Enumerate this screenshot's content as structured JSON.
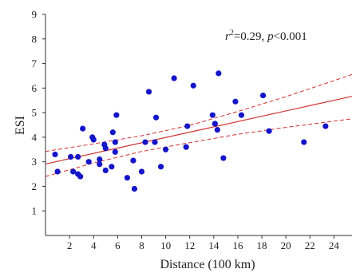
{
  "chart_data": {
    "type": "scatter",
    "xlabel": "Distance (100 km)",
    "ylabel": "ESI",
    "xlim": [
      0,
      25.5
    ],
    "ylim": [
      0,
      9
    ],
    "xticks": [
      2,
      4,
      6,
      8,
      10,
      12,
      14,
      16,
      18,
      20,
      22,
      24
    ],
    "yticks": [
      1,
      2,
      3,
      4,
      5,
      6,
      7,
      8,
      9
    ],
    "annotation": {
      "r_symbol": "r",
      "r_exp": "2",
      "r_value": "=0.29, ",
      "p_symbol": "p",
      "p_value": "<0.001"
    },
    "colors": {
      "points": "#1414c8",
      "fit": "#d03030",
      "axis": "#333333"
    },
    "regression": {
      "intercept": 2.91,
      "slope": 0.108
    },
    "confidence_band": {
      "x": [
        0,
        4,
        8,
        12,
        16,
        20,
        25.5
      ],
      "upper": [
        3.42,
        3.73,
        4.06,
        4.48,
        5.05,
        5.65,
        6.55
      ],
      "lower": [
        2.4,
        2.95,
        3.42,
        3.78,
        4.12,
        4.4,
        4.75
      ]
    },
    "points": [
      {
        "x": 0.8,
        "y": 3.3
      },
      {
        "x": 1.0,
        "y": 2.6
      },
      {
        "x": 2.1,
        "y": 3.2
      },
      {
        "x": 2.3,
        "y": 2.6
      },
      {
        "x": 2.7,
        "y": 3.2
      },
      {
        "x": 2.7,
        "y": 2.5
      },
      {
        "x": 2.9,
        "y": 2.4
      },
      {
        "x": 3.1,
        "y": 4.35
      },
      {
        "x": 3.6,
        "y": 3.0
      },
      {
        "x": 3.9,
        "y": 4.0
      },
      {
        "x": 4.0,
        "y": 3.9
      },
      {
        "x": 4.5,
        "y": 3.1
      },
      {
        "x": 4.5,
        "y": 2.9
      },
      {
        "x": 4.9,
        "y": 3.7
      },
      {
        "x": 5.0,
        "y": 3.55
      },
      {
        "x": 5.0,
        "y": 2.65
      },
      {
        "x": 5.5,
        "y": 2.8
      },
      {
        "x": 5.6,
        "y": 4.2
      },
      {
        "x": 5.8,
        "y": 3.8
      },
      {
        "x": 5.8,
        "y": 3.4
      },
      {
        "x": 5.9,
        "y": 4.9
      },
      {
        "x": 6.8,
        "y": 2.35
      },
      {
        "x": 7.3,
        "y": 3.05
      },
      {
        "x": 7.4,
        "y": 1.9
      },
      {
        "x": 8.0,
        "y": 2.6
      },
      {
        "x": 8.3,
        "y": 3.8
      },
      {
        "x": 8.6,
        "y": 5.85
      },
      {
        "x": 9.1,
        "y": 3.8
      },
      {
        "x": 9.2,
        "y": 4.8
      },
      {
        "x": 9.6,
        "y": 2.8
      },
      {
        "x": 10.0,
        "y": 3.5
      },
      {
        "x": 10.7,
        "y": 6.4
      },
      {
        "x": 11.7,
        "y": 3.6
      },
      {
        "x": 11.8,
        "y": 4.45
      },
      {
        "x": 12.3,
        "y": 6.1
      },
      {
        "x": 13.9,
        "y": 4.9
      },
      {
        "x": 14.1,
        "y": 4.55
      },
      {
        "x": 14.3,
        "y": 4.3
      },
      {
        "x": 14.4,
        "y": 6.6
      },
      {
        "x": 14.8,
        "y": 3.15
      },
      {
        "x": 15.8,
        "y": 5.45
      },
      {
        "x": 16.3,
        "y": 4.9
      },
      {
        "x": 18.1,
        "y": 5.7
      },
      {
        "x": 18.6,
        "y": 4.25
      },
      {
        "x": 21.5,
        "y": 3.8
      },
      {
        "x": 23.3,
        "y": 4.45
      }
    ]
  }
}
